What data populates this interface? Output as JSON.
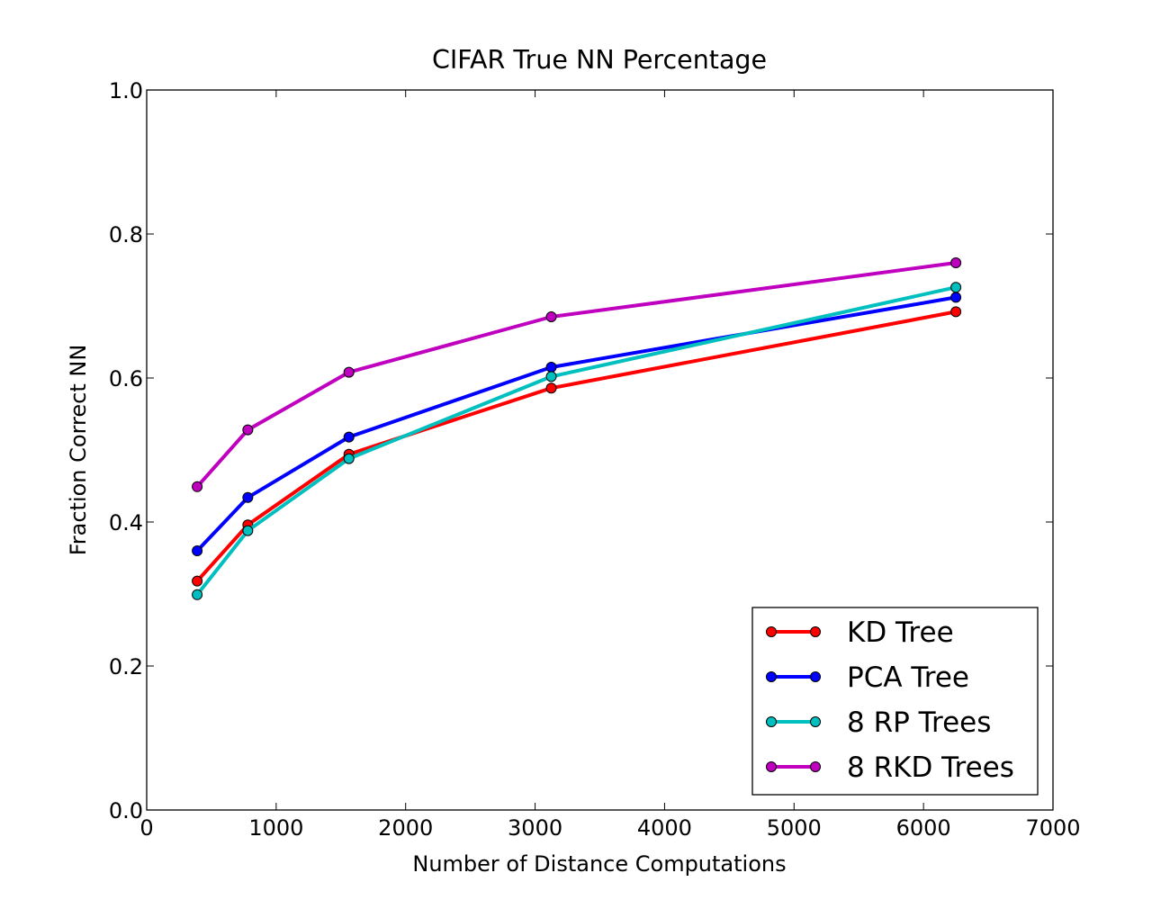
{
  "chart_data": {
    "type": "line",
    "title": "CIFAR True NN Percentage",
    "xlabel": "Number of Distance Computations",
    "ylabel": "Fraction Correct NN",
    "xlim": [
      0,
      7000
    ],
    "ylim": [
      0.0,
      1.0
    ],
    "xticks": [
      0,
      1000,
      2000,
      3000,
      4000,
      5000,
      6000,
      7000
    ],
    "xtick_labels": [
      "0",
      "1000",
      "2000",
      "3000",
      "4000",
      "5000",
      "6000",
      "7000"
    ],
    "yticks": [
      0.0,
      0.2,
      0.4,
      0.6,
      0.8,
      1.0
    ],
    "ytick_labels": [
      "0.0",
      "0.2",
      "0.4",
      "0.6",
      "0.8",
      "1.0"
    ],
    "grid": false,
    "legend_position": "lower-right",
    "x": [
      390,
      781,
      1562,
      3125,
      6250
    ],
    "series": [
      {
        "name": "KD Tree",
        "color": "#ff0000",
        "values": [
          0.318,
          0.396,
          0.494,
          0.586,
          0.692
        ]
      },
      {
        "name": "PCA Tree",
        "color": "#0000ff",
        "values": [
          0.36,
          0.434,
          0.518,
          0.615,
          0.712
        ]
      },
      {
        "name": "8 RP Trees",
        "color": "#00bfbf",
        "values": [
          0.299,
          0.388,
          0.488,
          0.602,
          0.726
        ]
      },
      {
        "name": "8 RKD Trees",
        "color": "#bf00bf",
        "values": [
          0.449,
          0.528,
          0.608,
          0.685,
          0.76
        ]
      }
    ]
  }
}
